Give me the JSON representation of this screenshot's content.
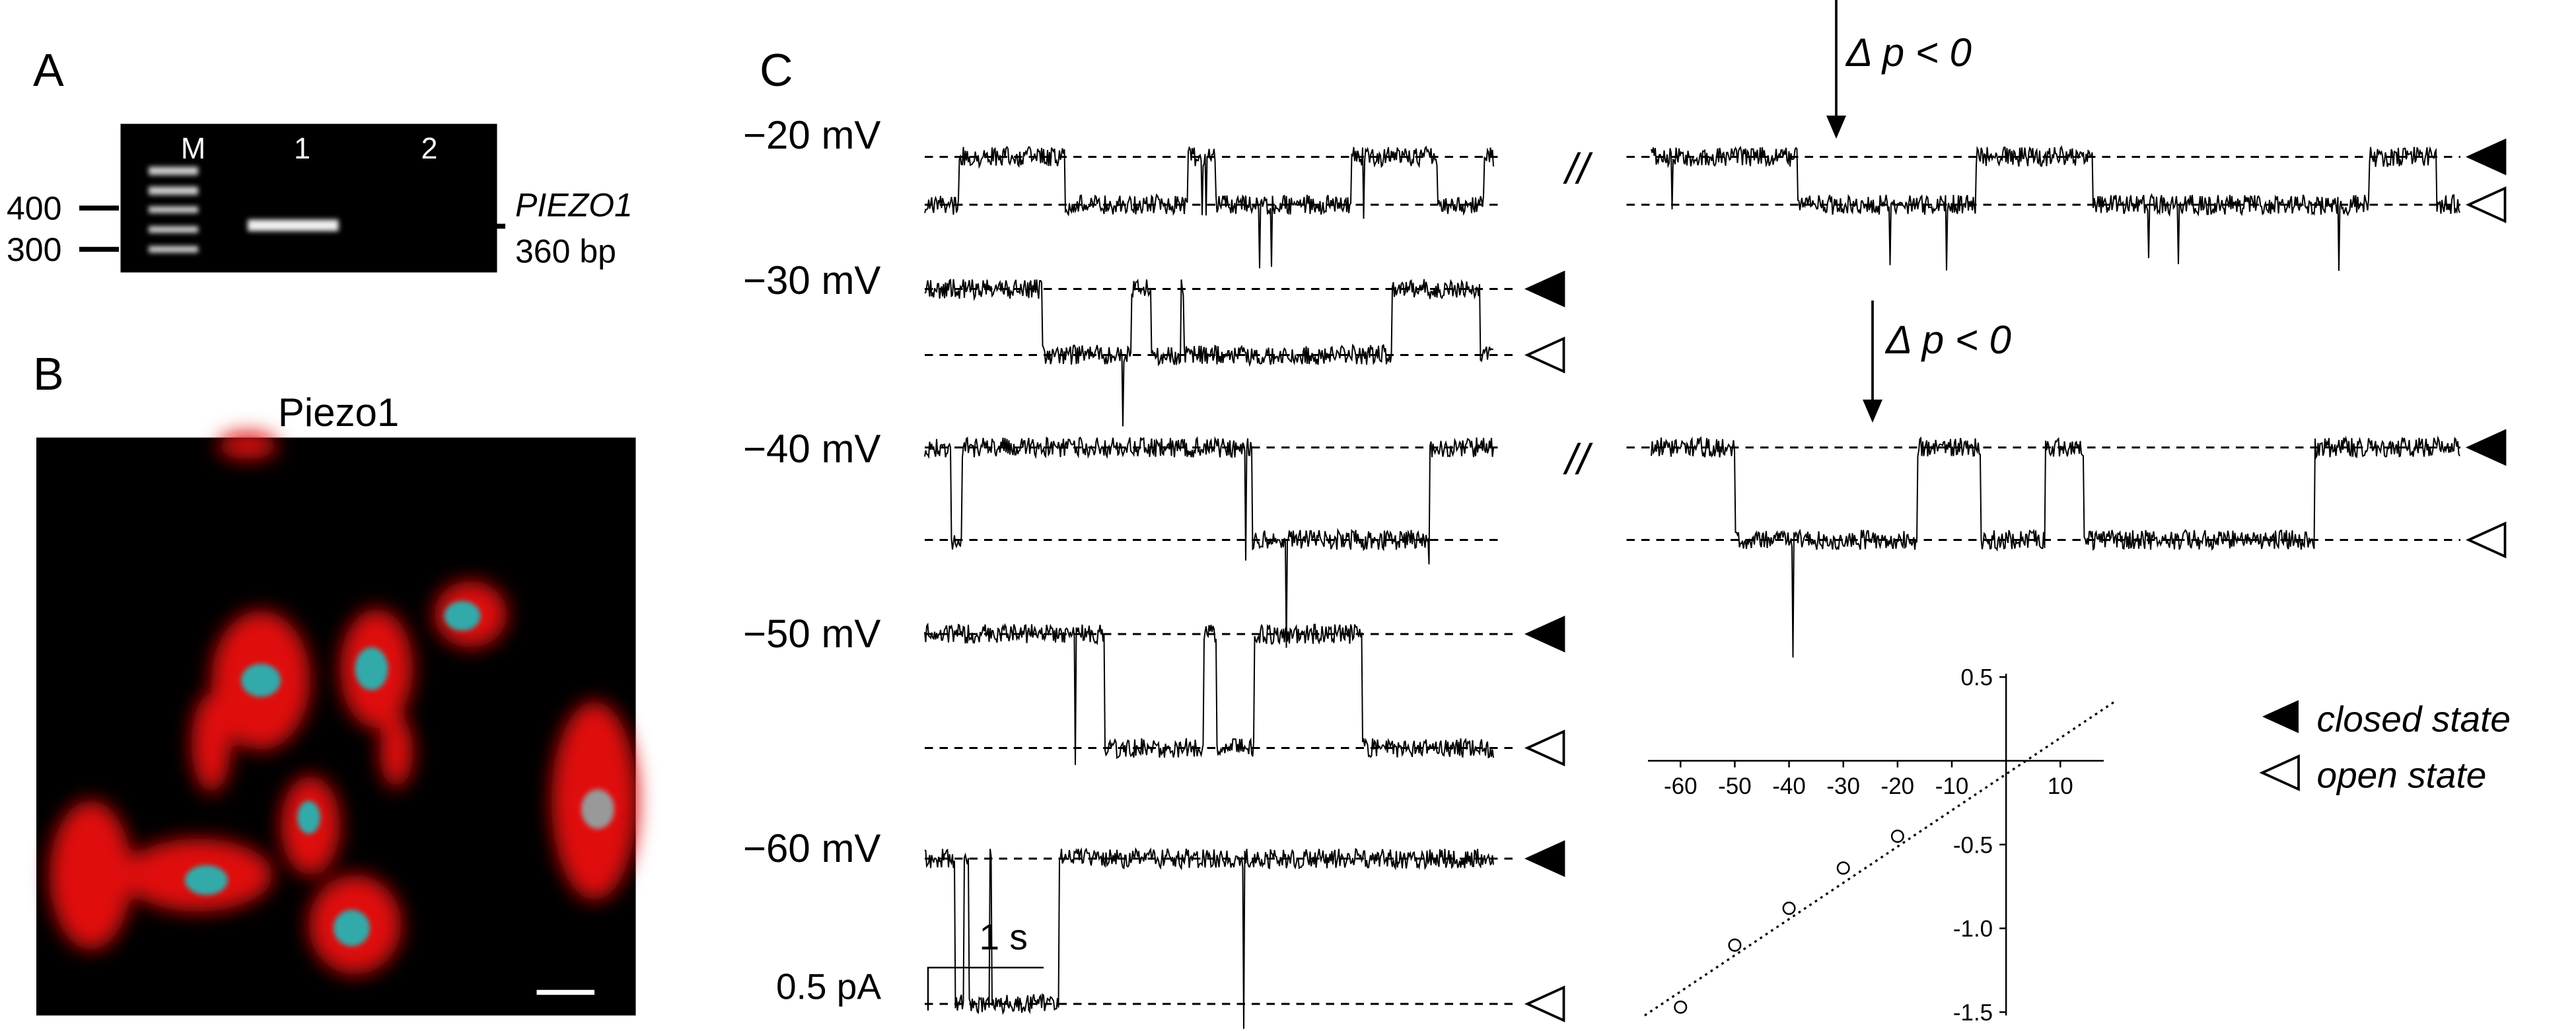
{
  "panels": {
    "A": {
      "label": "A",
      "lanes": [
        "M",
        "1",
        "2"
      ],
      "markers": [
        "400",
        "300"
      ],
      "gene": "PIEZO1",
      "size": "360 bp"
    },
    "B": {
      "label": "B",
      "title": "Piezo1"
    },
    "C": {
      "label": "C",
      "voltages": [
        "−20 mV",
        "−30 mV",
        "−40 mV",
        "−50 mV",
        "−60 mV"
      ],
      "stimulus": [
        "Δ p < 0",
        "Δ p < 0"
      ],
      "scale_current": "0.5 pA",
      "scale_time": "1 s",
      "legend": [
        "closed state",
        "open state"
      ]
    }
  },
  "iv_plot": {
    "type": "scatter",
    "x": [
      -60,
      -50,
      -40,
      -30,
      -20
    ],
    "values": [
      -1.47,
      -1.1,
      -0.88,
      -0.64,
      -0.45
    ],
    "xlim": [
      -66,
      18
    ],
    "ylim": [
      -1.52,
      0.52
    ],
    "xticks": [
      -60,
      -50,
      -40,
      -30,
      -20,
      -10,
      10
    ],
    "yticks": [
      0.5,
      -0.5,
      {
        "value": -1,
        "label": "-1.0"
      },
      -1.5
    ]
  }
}
